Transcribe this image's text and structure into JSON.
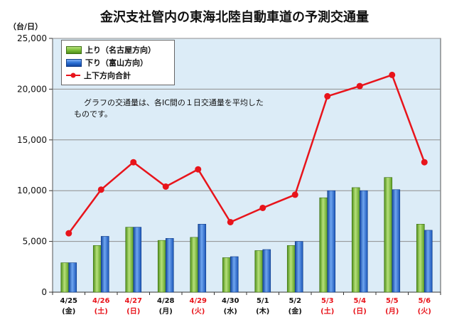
{
  "title": "金沢支社管内の東海北陸自動車道の予測交通量",
  "y_unit": "（台/日）",
  "note": "グラフの交通量は、各IC間の１日交通量を平均したものです。",
  "colors": {
    "up": "#7dbf3a",
    "down": "#2a6fd6",
    "total": "#e8141b",
    "plot_bg": "#dcecf7",
    "holiday_text": "#e8141b"
  },
  "legend": [
    {
      "label": "上り（名古屋方向）",
      "color": "#7dbf3a",
      "kind": "bar"
    },
    {
      "label": "下り（富山方向）",
      "color": "#2a6fd6",
      "kind": "bar"
    },
    {
      "label": "上下方向合計",
      "color": "#e8141b",
      "kind": "line"
    }
  ],
  "chart_data": {
    "type": "bar",
    "categories": [
      "4/25",
      "4/26",
      "4/27",
      "4/28",
      "4/29",
      "4/30",
      "5/1",
      "5/2",
      "5/3",
      "5/4",
      "5/5",
      "5/6"
    ],
    "weekdays": [
      "(金)",
      "(土)",
      "(日)",
      "(月)",
      "(火)",
      "(水)",
      "(木)",
      "(金)",
      "(土)",
      "(日)",
      "(月)",
      "(火)"
    ],
    "holidays": [
      false,
      true,
      true,
      false,
      true,
      false,
      false,
      false,
      true,
      true,
      true,
      true
    ],
    "series": [
      {
        "name": "上り（名古屋方向）",
        "type": "bar",
        "values": [
          2900,
          4600,
          6400,
          5100,
          5400,
          3400,
          4100,
          4600,
          9300,
          10300,
          11300,
          6700
        ]
      },
      {
        "name": "下り（富山方向）",
        "type": "bar",
        "values": [
          2900,
          5500,
          6400,
          5300,
          6700,
          3500,
          4200,
          5000,
          10000,
          10000,
          10100,
          6100
        ]
      },
      {
        "name": "上下方向合計",
        "type": "line",
        "values": [
          5800,
          10100,
          12800,
          10400,
          12100,
          6900,
          8300,
          9600,
          19300,
          20300,
          21400,
          12800
        ]
      }
    ],
    "ylim": [
      0,
      25000
    ],
    "yticks": [
      0,
      5000,
      10000,
      15000,
      20000,
      25000
    ],
    "ytick_labels": [
      "0",
      "5,000",
      "10,000",
      "15,000",
      "20,000",
      "25,000"
    ],
    "grid": true,
    "legend_position": "top-left"
  }
}
